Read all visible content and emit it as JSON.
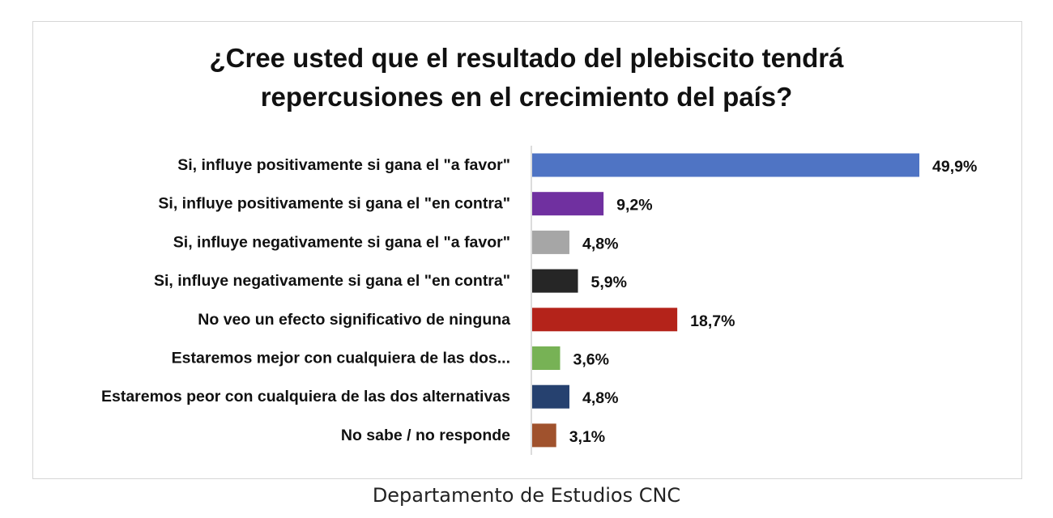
{
  "chart_data": {
    "type": "bar",
    "orientation": "horizontal",
    "title_lines": [
      "¿Cree usted que el resultado del plebiscito tendrá",
      "repercusiones en el crecimiento del país?"
    ],
    "categories": [
      "Si, influye positivamente si gana el \"a favor\"",
      "Si, influye positivamente si gana el \"en contra\"",
      "Si, influye negativamente si gana el \"a favor\"",
      "Si, influye negativamente si gana el \"en contra\"",
      "No veo un efecto significativo de ninguna",
      "Estaremos mejor con cualquiera de las dos...",
      "Estaremos peor con cualquiera de las dos alternativas",
      "No sabe / no responde"
    ],
    "values": [
      49.9,
      9.2,
      4.8,
      5.9,
      18.7,
      3.6,
      4.8,
      3.1
    ],
    "value_labels": [
      "49,9%",
      "9,2%",
      "4,8%",
      "5,9%",
      "18,7%",
      "3,6%",
      "4,8%",
      "3,1%"
    ],
    "colors": [
      "#4f74c4",
      "#7030a0",
      "#a6a6a6",
      "#262626",
      "#b4231a",
      "#77b255",
      "#26416f",
      "#a0522d"
    ],
    "xlim": [
      0,
      50
    ],
    "grid": false,
    "legend": "none"
  },
  "source": "Departamento de Estudios CNC"
}
